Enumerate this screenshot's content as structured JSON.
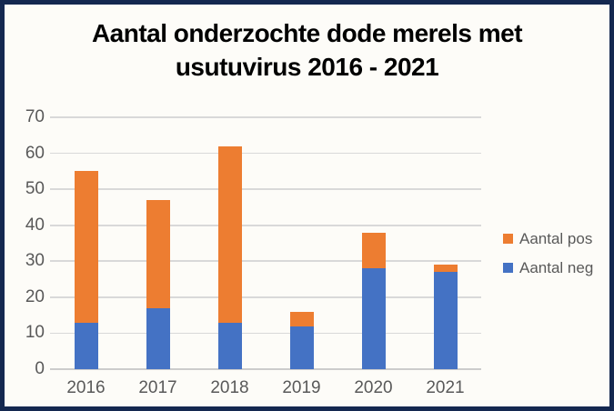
{
  "window": {
    "background": "#fdfcf8",
    "border_color": "#142850"
  },
  "title": {
    "lines": [
      "Aantal onderzochte dode merels met",
      "usutuvirus 2016 - 2021"
    ]
  },
  "chart_data": {
    "type": "bar",
    "stacked": true,
    "title": "Aantal onderzochte dode merels met usutuvirus 2016 - 2021",
    "categories": [
      "2016",
      "2017",
      "2018",
      "2019",
      "2020",
      "2021"
    ],
    "series": [
      {
        "name": "Aantal neg",
        "color": "#4472c4",
        "values": [
          13,
          17,
          13,
          12,
          28,
          27
        ]
      },
      {
        "name": "Aantal pos",
        "color": "#ed7d31",
        "values": [
          42,
          30,
          49,
          4,
          10,
          2
        ]
      }
    ],
    "totals": [
      55,
      47,
      62,
      16,
      38,
      29
    ],
    "xlabel": "",
    "ylabel": "",
    "ylim": [
      0,
      70
    ],
    "ytick_step": 10,
    "yticks": [
      "0",
      "10",
      "20",
      "30",
      "40",
      "50",
      "60",
      "70"
    ],
    "grid": true,
    "legend_position": "right",
    "legend": [
      {
        "label": "Aantal pos",
        "color": "#ed7d31"
      },
      {
        "label": "Aantal neg",
        "color": "#4472c4"
      }
    ],
    "colors": {
      "gridline": "#d9d9d9",
      "axis_line": "#cccccc",
      "tick_label": "#595959",
      "title_text": "#000000"
    }
  }
}
